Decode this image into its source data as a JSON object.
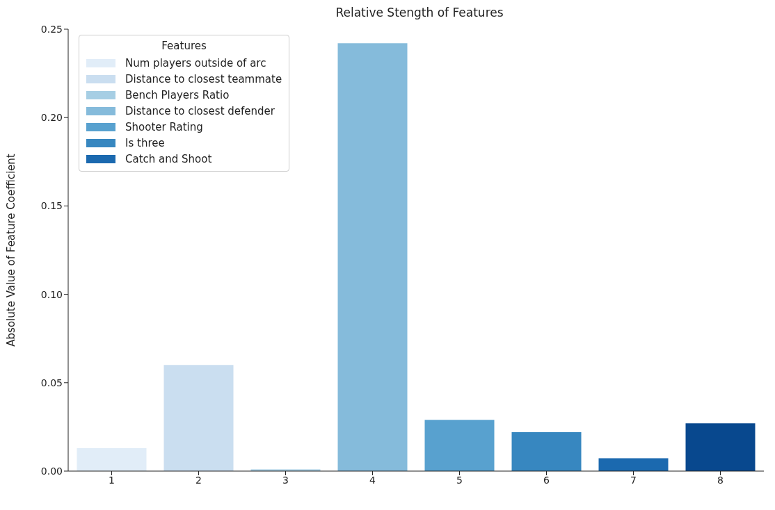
{
  "chart_data": {
    "type": "bar",
    "title": "Relative Stength of Features",
    "ylabel": "Absolute Value of Feature Coefficient",
    "legend_title": "Features",
    "legend": "top left",
    "grid": false,
    "categories": [
      "1",
      "2",
      "3",
      "4",
      "5",
      "6",
      "7",
      "8"
    ],
    "ylim": [
      0,
      0.25
    ],
    "yticks": [
      {
        "value": 0,
        "label": "0.00"
      },
      0.05,
      {
        "value": 0.1,
        "label": "0.10"
      },
      0.15,
      {
        "value": 0.2,
        "label": "0.20"
      },
      0.25
    ],
    "series": [
      {
        "name": "Num players outside of arc",
        "color": "#e1edf8",
        "values": [
          0.013,
          null,
          null,
          null,
          null,
          null,
          null,
          null
        ]
      },
      {
        "name": "Distance to closest teammate",
        "color": "#cadef0",
        "values": [
          null,
          0.06,
          null,
          null,
          null,
          null,
          null,
          null
        ]
      },
      {
        "name": "Bench Players Ratio",
        "color": "#a6cee4",
        "values": [
          null,
          null,
          0.001,
          null,
          null,
          null,
          null,
          null
        ]
      },
      {
        "name": "Distance to closest defender",
        "color": "#85bbdb",
        "values": [
          null,
          null,
          null,
          0.242,
          null,
          null,
          null,
          null
        ]
      },
      {
        "name": "Shooter Rating",
        "color": "#58a1cf",
        "values": [
          null,
          null,
          null,
          null,
          0.029,
          null,
          null,
          null
        ]
      },
      {
        "name": "Is three",
        "color": "#3787c0",
        "values": [
          null,
          null,
          null,
          null,
          null,
          0.022,
          null,
          null
        ]
      },
      {
        "name": "Catch and Shoot",
        "color": "#1b69af",
        "values": [
          null,
          null,
          null,
          null,
          null,
          null,
          0.0073,
          null
        ]
      },
      {
        "color": "#08488e",
        "values": [
          null,
          null,
          null,
          null,
          null,
          null,
          null,
          0.027
        ]
      }
    ]
  }
}
